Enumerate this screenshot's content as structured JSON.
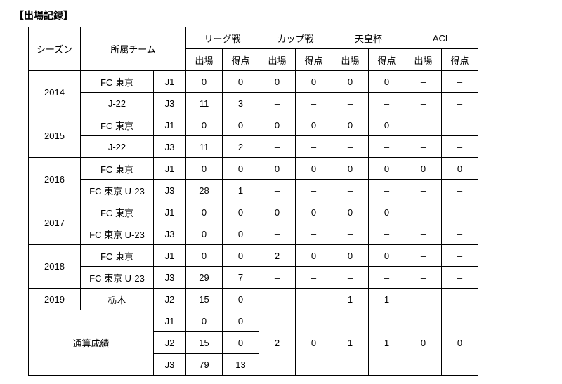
{
  "title": "【出場記録】",
  "headers": {
    "season": "シーズン",
    "team": "所属チーム",
    "league": "リーグ戦",
    "cup": "カップ戦",
    "emperor": "天皇杯",
    "acl": "ACL",
    "apps": "出場",
    "goals": "得点"
  },
  "rows": [
    {
      "season": "2014",
      "team": "FC 東京",
      "div": "J1",
      "league_a": "0",
      "league_g": "0",
      "cup_a": "0",
      "cup_g": "0",
      "emp_a": "0",
      "emp_g": "0",
      "acl_a": "–",
      "acl_g": "–"
    },
    {
      "season": "",
      "team": "J-22",
      "div": "J3",
      "league_a": "11",
      "league_g": "3",
      "cup_a": "–",
      "cup_g": "–",
      "emp_a": "–",
      "emp_g": "–",
      "acl_a": "–",
      "acl_g": "–"
    },
    {
      "season": "2015",
      "team": "FC 東京",
      "div": "J1",
      "league_a": "0",
      "league_g": "0",
      "cup_a": "0",
      "cup_g": "0",
      "emp_a": "0",
      "emp_g": "0",
      "acl_a": "–",
      "acl_g": "–"
    },
    {
      "season": "",
      "team": "J-22",
      "div": "J3",
      "league_a": "11",
      "league_g": "2",
      "cup_a": "–",
      "cup_g": "–",
      "emp_a": "–",
      "emp_g": "–",
      "acl_a": "–",
      "acl_g": "–"
    },
    {
      "season": "2016",
      "team": "FC 東京",
      "div": "J1",
      "league_a": "0",
      "league_g": "0",
      "cup_a": "0",
      "cup_g": "0",
      "emp_a": "0",
      "emp_g": "0",
      "acl_a": "0",
      "acl_g": "0"
    },
    {
      "season": "",
      "team": "FC 東京 U-23",
      "div": "J3",
      "league_a": "28",
      "league_g": "1",
      "cup_a": "–",
      "cup_g": "–",
      "emp_a": "–",
      "emp_g": "–",
      "acl_a": "–",
      "acl_g": "–"
    },
    {
      "season": "2017",
      "team": "FC 東京",
      "div": "J1",
      "league_a": "0",
      "league_g": "0",
      "cup_a": "0",
      "cup_g": "0",
      "emp_a": "0",
      "emp_g": "0",
      "acl_a": "–",
      "acl_g": "–"
    },
    {
      "season": "",
      "team": "FC 東京 U-23",
      "div": "J3",
      "league_a": "0",
      "league_g": "0",
      "cup_a": "–",
      "cup_g": "–",
      "emp_a": "–",
      "emp_g": "–",
      "acl_a": "–",
      "acl_g": "–"
    },
    {
      "season": "2018",
      "team": "FC 東京",
      "div": "J1",
      "league_a": "0",
      "league_g": "0",
      "cup_a": "2",
      "cup_g": "0",
      "emp_a": "0",
      "emp_g": "0",
      "acl_a": "–",
      "acl_g": "–"
    },
    {
      "season": "",
      "team": "FC 東京 U-23",
      "div": "J3",
      "league_a": "29",
      "league_g": "7",
      "cup_a": "–",
      "cup_g": "–",
      "emp_a": "–",
      "emp_g": "–",
      "acl_a": "–",
      "acl_g": "–"
    },
    {
      "season": "2019",
      "team": "栃木",
      "div": "J2",
      "league_a": "15",
      "league_g": "0",
      "cup_a": "–",
      "cup_g": "–",
      "emp_a": "1",
      "emp_g": "1",
      "acl_a": "–",
      "acl_g": "–"
    }
  ],
  "totals": {
    "label": "通算成績",
    "j1": {
      "div": "J1",
      "league_a": "0",
      "league_g": "0"
    },
    "j2": {
      "div": "J2",
      "league_a": "15",
      "league_g": "0"
    },
    "j3": {
      "div": "J3",
      "league_a": "79",
      "league_g": "13"
    },
    "cup_a": "2",
    "cup_g": "0",
    "emp_a": "1",
    "emp_g": "1",
    "acl_a": "0",
    "acl_g": "0"
  }
}
